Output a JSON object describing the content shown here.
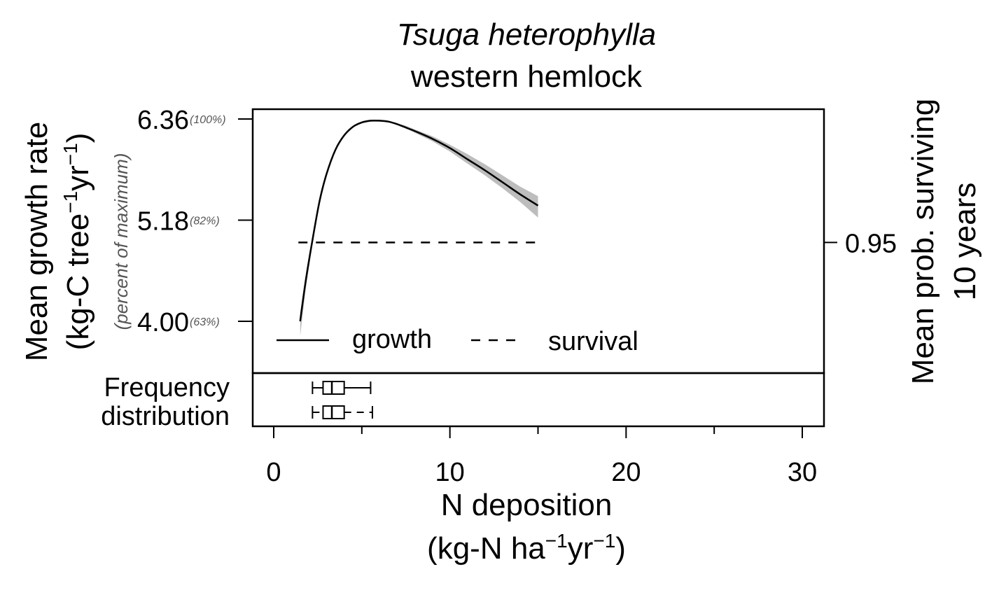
{
  "chart_data": {
    "type": "line",
    "title": "Tsuga heterophylla",
    "subtitle": "western hemlock",
    "xlabel": "N deposition",
    "xunit": {
      "prefix": "(kg-N ha",
      "mid": "yr",
      "exp": "−1",
      "suffix": ")"
    },
    "ylabel": "Mean growth rate",
    "yunit": {
      "prefix": "(kg-C tree",
      "mid": "yr",
      "exp": "−1",
      "suffix": ")"
    },
    "y_secondary_label": "(percent of maximum)",
    "y2label_line1": "Mean prob. surviving",
    "y2label_line2": "10 years",
    "xlim": [
      -1.2,
      31.2
    ],
    "xticks": [
      0,
      10,
      20,
      30
    ],
    "xminor": [
      5,
      15,
      25
    ],
    "ylim": [
      3.71,
      6.36
    ],
    "yticks": [
      {
        "value": 6.36,
        "label": "6.36",
        "pct": "(100%)"
      },
      {
        "value": 5.18,
        "label": "5.18",
        "pct": "(82%)"
      },
      {
        "value": 4.0,
        "label": "4.00",
        "pct": "(63%)"
      }
    ],
    "y2ticks": [
      {
        "label": "0.95",
        "y_equiv": 4.92
      }
    ],
    "series": [
      {
        "name": "growth",
        "style": "solid",
        "x": [
          1.5,
          1.8,
          2.2,
          2.6,
          3.0,
          3.5,
          4.0,
          4.5,
          5.0,
          5.5,
          6.0,
          6.5,
          7.0,
          7.5,
          8.0,
          9.0,
          10.0,
          11.0,
          12.0,
          13.0,
          14.0,
          15.0
        ],
        "y": [
          4.0,
          4.45,
          4.95,
          5.4,
          5.72,
          6.0,
          6.17,
          6.27,
          6.32,
          6.34,
          6.34,
          6.33,
          6.3,
          6.26,
          6.22,
          6.13,
          6.02,
          5.89,
          5.76,
          5.62,
          5.48,
          5.35
        ],
        "ci_low": [
          3.83,
          4.35,
          4.9,
          5.37,
          5.7,
          5.99,
          6.16,
          6.26,
          6.31,
          6.33,
          6.33,
          6.32,
          6.29,
          6.25,
          6.2,
          6.1,
          5.98,
          5.84,
          5.7,
          5.55,
          5.39,
          5.21
        ],
        "ci_high": [
          4.1,
          4.52,
          5.0,
          5.43,
          5.74,
          6.01,
          6.18,
          6.28,
          6.33,
          6.35,
          6.35,
          6.34,
          6.31,
          6.28,
          6.24,
          6.16,
          6.06,
          5.95,
          5.83,
          5.7,
          5.57,
          5.46
        ]
      },
      {
        "name": "survival",
        "style": "dashed",
        "x": [
          1.4,
          15.0
        ],
        "y2": [
          0.95,
          0.95
        ]
      }
    ],
    "legend": {
      "position": "bottom-left",
      "entries": [
        "growth",
        "survival"
      ]
    },
    "frequency_label_line1": "Frequency",
    "frequency_label_line2": "distribution",
    "boxplots": [
      {
        "whisker_low": 2.2,
        "q1": 2.8,
        "median": 3.3,
        "q3": 4.0,
        "whisker_high": 5.5,
        "whisker_style": "solid"
      },
      {
        "whisker_low": 2.2,
        "q1": 2.8,
        "median": 3.3,
        "q3": 4.0,
        "whisker_high": 5.6,
        "whisker_style": "dashed"
      }
    ],
    "colors": {
      "line": "#000000",
      "ci_band": "#bdbdbd",
      "frame": "#000000"
    }
  }
}
